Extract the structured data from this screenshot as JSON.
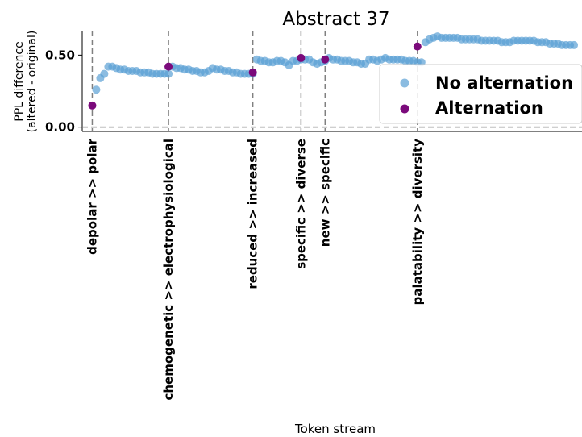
{
  "chart_data": {
    "type": "scatter",
    "title": "Abstract 37",
    "xlabel": "Token stream",
    "ylabel_lines": [
      "PPL difference",
      "(altered - original)"
    ],
    "yticks": [
      0.0,
      0.5
    ],
    "ytick_labels": [
      "0.00",
      "0.50"
    ],
    "ylim": [
      -0.03,
      0.67
    ],
    "xlim": [
      -2.5,
      122
    ],
    "grid": false,
    "legend_position": "right",
    "colors": {
      "no_alternation": "#5a9fd4",
      "alternation": "#7b0a7b",
      "reference": "#808080"
    },
    "series": [
      {
        "name": "No alternation",
        "color": "#5a9fd4",
        "x": [
          1,
          2,
          3,
          4,
          5,
          6,
          7,
          8,
          9,
          10,
          11,
          12,
          13,
          14,
          15,
          16,
          17,
          18,
          19,
          20,
          21,
          22,
          23,
          24,
          25,
          26,
          27,
          28,
          29,
          30,
          31,
          32,
          33,
          34,
          35,
          36,
          37,
          38,
          39,
          40,
          41,
          42,
          43,
          44,
          45,
          46,
          47,
          48,
          49,
          50,
          51,
          52,
          53,
          54,
          55,
          56,
          57,
          58,
          59,
          60,
          61,
          62,
          63,
          64,
          65,
          66,
          67,
          68,
          69,
          70,
          71,
          72,
          73,
          74,
          75,
          76,
          77,
          78,
          79,
          80,
          81,
          82,
          83,
          84,
          85,
          86,
          87,
          88,
          89,
          90,
          91,
          92,
          93,
          94,
          95,
          96,
          97,
          98,
          99,
          100,
          101,
          102,
          103,
          104,
          105,
          106,
          107,
          108,
          109,
          110,
          111,
          112,
          113,
          114,
          115,
          116,
          117,
          118,
          119,
          120
        ],
        "y": [
          0.26,
          0.34,
          0.37,
          0.42,
          0.42,
          0.41,
          0.4,
          0.4,
          0.39,
          0.39,
          0.39,
          0.38,
          0.38,
          0.38,
          0.37,
          0.37,
          0.37,
          0.37,
          0.37,
          0.42,
          0.41,
          0.41,
          0.4,
          0.4,
          0.39,
          0.39,
          0.38,
          0.38,
          0.39,
          0.41,
          0.4,
          0.4,
          0.39,
          0.39,
          0.38,
          0.38,
          0.37,
          0.37,
          0.37,
          0.37,
          0.47,
          0.46,
          0.46,
          0.45,
          0.45,
          0.46,
          0.46,
          0.45,
          0.43,
          0.46,
          0.46,
          0.47,
          0.47,
          0.47,
          0.45,
          0.44,
          0.45,
          0.46,
          0.48,
          0.47,
          0.47,
          0.46,
          0.46,
          0.46,
          0.45,
          0.45,
          0.44,
          0.44,
          0.47,
          0.47,
          0.46,
          0.47,
          0.48,
          0.47,
          0.47,
          0.47,
          0.47,
          0.46,
          0.46,
          0.46,
          0.45,
          0.45,
          0.59,
          0.61,
          0.62,
          0.63,
          0.62,
          0.62,
          0.62,
          0.62,
          0.62,
          0.61,
          0.61,
          0.61,
          0.61,
          0.61,
          0.6,
          0.6,
          0.6,
          0.6,
          0.6,
          0.59,
          0.59,
          0.59,
          0.6,
          0.6,
          0.6,
          0.6,
          0.6,
          0.6,
          0.59,
          0.59,
          0.59,
          0.58,
          0.58,
          0.58,
          0.57,
          0.57,
          0.57,
          0.57
        ]
      },
      {
        "name": "Alternation",
        "color": "#7b0a7b",
        "x": [
          0,
          19,
          40,
          52,
          58,
          81
        ],
        "y": [
          0.15,
          0.42,
          0.38,
          0.48,
          0.47,
          0.56
        ],
        "labels": [
          "depolar >> polar",
          "chemogenetic >> electrophysiological",
          "reduced >> increased",
          "specific >> diverse",
          "new >> specific",
          "palatability >> diversity"
        ]
      }
    ]
  }
}
